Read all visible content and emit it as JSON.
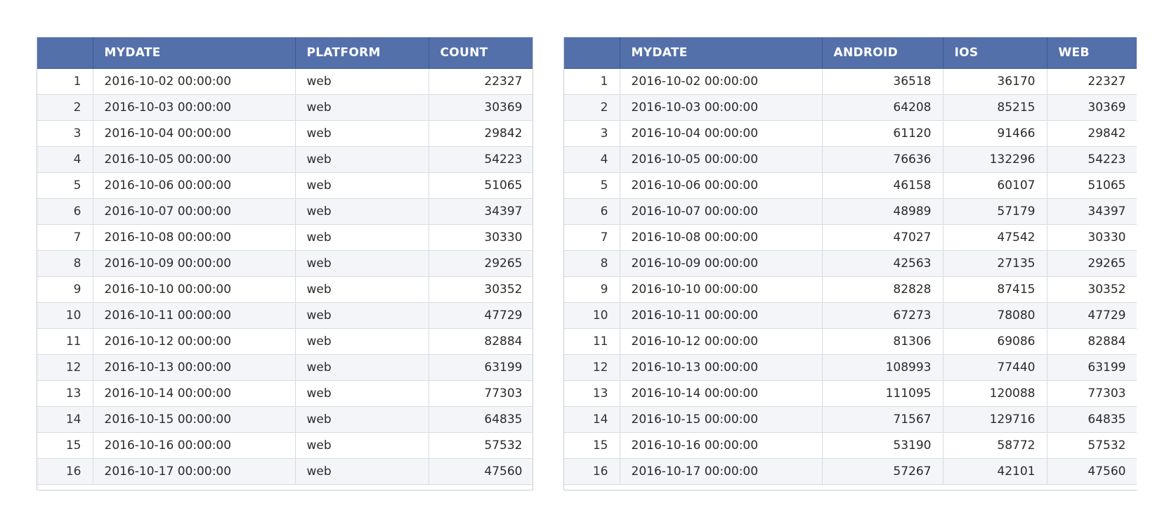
{
  "left_table": {
    "columns": [
      "",
      "MYDATE",
      "PLATFORM",
      "COUNT"
    ],
    "rows": [
      [
        "1",
        "2016-10-02 00:00:00",
        "web",
        "22327"
      ],
      [
        "2",
        "2016-10-03 00:00:00",
        "web",
        "30369"
      ],
      [
        "3",
        "2016-10-04 00:00:00",
        "web",
        "29842"
      ],
      [
        "4",
        "2016-10-05 00:00:00",
        "web",
        "54223"
      ],
      [
        "5",
        "2016-10-06 00:00:00",
        "web",
        "51065"
      ],
      [
        "6",
        "2016-10-07 00:00:00",
        "web",
        "34397"
      ],
      [
        "7",
        "2016-10-08 00:00:00",
        "web",
        "30330"
      ],
      [
        "8",
        "2016-10-09 00:00:00",
        "web",
        "29265"
      ],
      [
        "9",
        "2016-10-10 00:00:00",
        "web",
        "30352"
      ],
      [
        "10",
        "2016-10-11 00:00:00",
        "web",
        "47729"
      ],
      [
        "11",
        "2016-10-12 00:00:00",
        "web",
        "82884"
      ],
      [
        "12",
        "2016-10-13 00:00:00",
        "web",
        "63199"
      ],
      [
        "13",
        "2016-10-14 00:00:00",
        "web",
        "77303"
      ],
      [
        "14",
        "2016-10-15 00:00:00",
        "web",
        "64835"
      ],
      [
        "15",
        "2016-10-16 00:00:00",
        "web",
        "57532"
      ],
      [
        "16",
        "2016-10-17 00:00:00",
        "web",
        "47560"
      ]
    ]
  },
  "right_table": {
    "columns": [
      "",
      "MYDATE",
      "ANDROID",
      "IOS",
      "WEB"
    ],
    "rows": [
      [
        "1",
        "2016-10-02 00:00:00",
        "36518",
        "36170",
        "22327"
      ],
      [
        "2",
        "2016-10-03 00:00:00",
        "64208",
        "85215",
        "30369"
      ],
      [
        "3",
        "2016-10-04 00:00:00",
        "61120",
        "91466",
        "29842"
      ],
      [
        "4",
        "2016-10-05 00:00:00",
        "76636",
        "132296",
        "54223"
      ],
      [
        "5",
        "2016-10-06 00:00:00",
        "46158",
        "60107",
        "51065"
      ],
      [
        "6",
        "2016-10-07 00:00:00",
        "48989",
        "57179",
        "34397"
      ],
      [
        "7",
        "2016-10-08 00:00:00",
        "47027",
        "47542",
        "30330"
      ],
      [
        "8",
        "2016-10-09 00:00:00",
        "42563",
        "27135",
        "29265"
      ],
      [
        "9",
        "2016-10-10 00:00:00",
        "82828",
        "87415",
        "30352"
      ],
      [
        "10",
        "2016-10-11 00:00:00",
        "67273",
        "78080",
        "47729"
      ],
      [
        "11",
        "2016-10-12 00:00:00",
        "81306",
        "69086",
        "82884"
      ],
      [
        "12",
        "2016-10-13 00:00:00",
        "108993",
        "77440",
        "63199"
      ],
      [
        "13",
        "2016-10-14 00:00:00",
        "111095",
        "120088",
        "77303"
      ],
      [
        "14",
        "2016-10-15 00:00:00",
        "71567",
        "129716",
        "64835"
      ],
      [
        "15",
        "2016-10-16 00:00:00",
        "53190",
        "58772",
        "57532"
      ],
      [
        "16",
        "2016-10-17 00:00:00",
        "57267",
        "42101",
        "47560"
      ]
    ]
  },
  "colors": {
    "header_bg": "#5470ab",
    "header_text": "#ffffff",
    "row_alt_bg": "#f3f5f8",
    "grid_line": "#d7dbe1"
  }
}
